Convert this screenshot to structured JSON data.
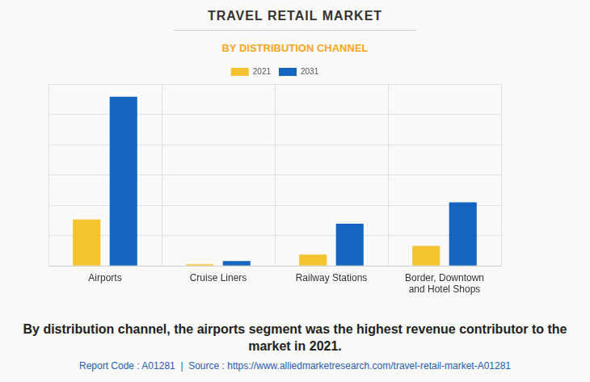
{
  "chart_data": {
    "type": "bar",
    "title": "TRAVEL RETAIL MARKET",
    "subtitle": "BY DISTRIBUTION CHANNEL",
    "caption": "By distribution channel, the airports segment was the highest revenue contributor to the market in 2021.",
    "source": "Report Code : A01281  |  Source : https://www.alliedmarketresearch.com/travel-retail-market-A01281",
    "categories": [
      "Airports",
      "Cruise Liners",
      "Railway Stations",
      "Border, Downtown and Hotel Shops"
    ],
    "series": [
      {
        "name": "2021",
        "color": "#f4c430",
        "values": [
          1.53,
          0.05,
          0.37,
          0.66
        ]
      },
      {
        "name": "2031",
        "color": "#1565c0",
        "values": [
          5.58,
          0.16,
          1.39,
          2.1
        ]
      }
    ],
    "ylim": [
      0,
      6
    ],
    "yticks": [
      0,
      1,
      2,
      3,
      4,
      5,
      6
    ],
    "grid": true,
    "legend": "top",
    "tick_labels": "x"
  }
}
